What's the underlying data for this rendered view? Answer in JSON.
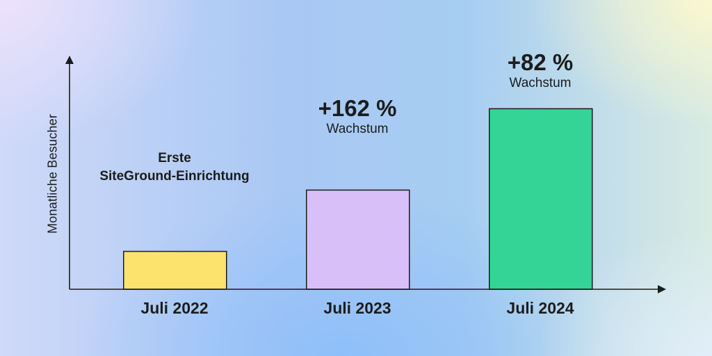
{
  "chart_data": {
    "type": "bar",
    "ylabel": "Monatliche Besucher",
    "categories": [
      "Juli 2022",
      "Juli 2023",
      "Juli 2024"
    ],
    "values": [
      100,
      262,
      477
    ],
    "colors": [
      "#fbe36e",
      "#d9bff8",
      "#34d496"
    ],
    "ylim": [
      0,
      550
    ],
    "grid": false,
    "legend": "none",
    "annotations": [
      {
        "category": "Juli 2022",
        "lines": [
          "Erste",
          "SiteGround-Einrichtung"
        ]
      },
      {
        "category": "Juli 2023",
        "value_text": "+162 %",
        "label": "Wachstum"
      },
      {
        "category": "Juli 2024",
        "value_text": "+82 %",
        "label": "Wachstum"
      }
    ]
  }
}
